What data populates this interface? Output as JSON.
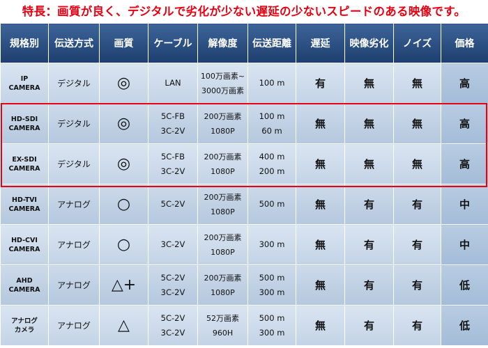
{
  "headline": "特長：画質が良く、デジタルで劣化が少ない遅延の少ないスピードのある映像です。",
  "accent_color": "#e60012",
  "header_color": "#254a7d",
  "columns": [
    "規格別",
    "伝送方式",
    "画質",
    "ケーブル",
    "解像度",
    "伝送距離",
    "遅延",
    "映像劣化",
    "ノイズ",
    "価格"
  ],
  "rows": [
    {
      "spec": [
        "IP",
        "CAMERA"
      ],
      "transmission": "デジタル",
      "quality": "◎",
      "cable": [
        "LAN"
      ],
      "resolution": [
        "100万画素~",
        "3000万画素"
      ],
      "distance": [
        "100 m"
      ],
      "delay": "有",
      "degradation": "無",
      "noise": "無",
      "price": "高"
    },
    {
      "spec": [
        "HD-SDI",
        "CAMERA"
      ],
      "transmission": "デジタル",
      "quality": "◎",
      "cable": [
        "5C-FB",
        "3C-2V"
      ],
      "resolution": [
        "200万画素",
        "1080P"
      ],
      "distance": [
        "100 m",
        "60 m"
      ],
      "delay": "無",
      "degradation": "無",
      "noise": "無",
      "price": "高"
    },
    {
      "spec": [
        "EX-SDI",
        "CAMERA"
      ],
      "transmission": "デジタル",
      "quality": "◎",
      "cable": [
        "5C-FB",
        "3C-2V"
      ],
      "resolution": [
        "200万画素",
        "1080P"
      ],
      "distance": [
        "400 m",
        "200 m"
      ],
      "delay": "無",
      "degradation": "無",
      "noise": "無",
      "price": "高"
    },
    {
      "spec": [
        "HD-TVI",
        "CAMERA"
      ],
      "transmission": "アナログ",
      "quality": "○",
      "cable": [
        "5C-2V"
      ],
      "resolution": [
        "200万画素",
        "1080P"
      ],
      "distance": [
        "500 m"
      ],
      "delay": "無",
      "degradation": "有",
      "noise": "有",
      "price": "中"
    },
    {
      "spec": [
        "HD-CVI",
        "CAMERA"
      ],
      "transmission": "アナログ",
      "quality": "○",
      "cable": [
        "3C-2V"
      ],
      "resolution": [
        "200万画素",
        "1080P"
      ],
      "distance": [
        "300 m"
      ],
      "delay": "無",
      "degradation": "有",
      "noise": "有",
      "price": "中"
    },
    {
      "spec": [
        "AHD",
        "CAMERA"
      ],
      "transmission": "アナログ",
      "quality": "△+",
      "cable": [
        "5C-2V",
        "3C-2V"
      ],
      "resolution": [
        "200万画素",
        "1080P"
      ],
      "distance": [
        "500 m",
        "300 m"
      ],
      "delay": "無",
      "degradation": "有",
      "noise": "有",
      "price": "低"
    },
    {
      "spec": [
        "アナログ",
        "カメラ"
      ],
      "transmission": "アナログ",
      "quality": "△",
      "cable": [
        "5C-2V",
        "3C-2V"
      ],
      "resolution": [
        "52万画素",
        "960H"
      ],
      "distance": [
        "500 m",
        "300 m"
      ],
      "delay": "無",
      "degradation": "有",
      "noise": "有",
      "price": "低"
    }
  ]
}
